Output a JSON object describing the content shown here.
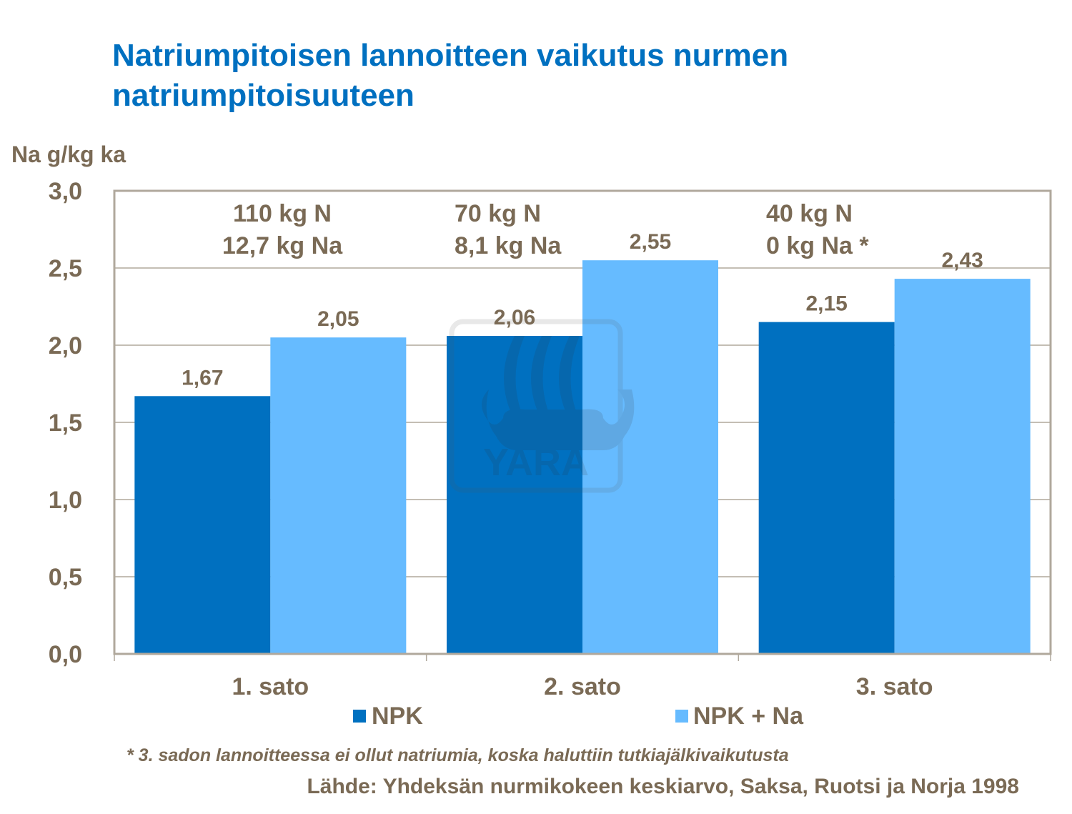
{
  "chart_data": {
    "type": "bar",
    "title": [
      "Natriumpitoisen lannoitteen vaikutus nurmen",
      "natriumpitoisuuteen"
    ],
    "ylabel": "Na g/kg ka",
    "xlabel": "",
    "categories": [
      "1. sato",
      "2. sato",
      "3. sato"
    ],
    "series": [
      {
        "name": "NPK",
        "values": [
          1.67,
          2.06,
          2.15
        ],
        "color": "#0070C0"
      },
      {
        "name": "NPK + Na",
        "values": [
          2.05,
          2.55,
          2.43
        ],
        "color": "#66BBFF"
      }
    ],
    "data_labels": [
      [
        "1,67",
        "2,06",
        "2,15"
      ],
      [
        "2,05",
        "2,55",
        "2,43"
      ]
    ],
    "ylim": [
      0,
      3.0
    ],
    "yticks": [
      "0,0",
      "0,5",
      "1,0",
      "1,5",
      "2,0",
      "2,5",
      "3,0"
    ],
    "grid": true,
    "legend_position": "bottom",
    "annotations": [
      [
        "110 kg N",
        "12,7 kg Na"
      ],
      [
        "70 kg N",
        "8,1 kg Na"
      ],
      [
        "40 kg N",
        "0 kg Na *"
      ]
    ],
    "footnote": "* 3. sadon lannoitteessa ei ollut natriumia, koska haluttiin tutkiajälkivaikutusta",
    "source": "Lähde: Yhdeksän nurmikokeen keskiarvo, Saksa, Ruotsi ja Norja 1998",
    "watermark": "YARA"
  }
}
